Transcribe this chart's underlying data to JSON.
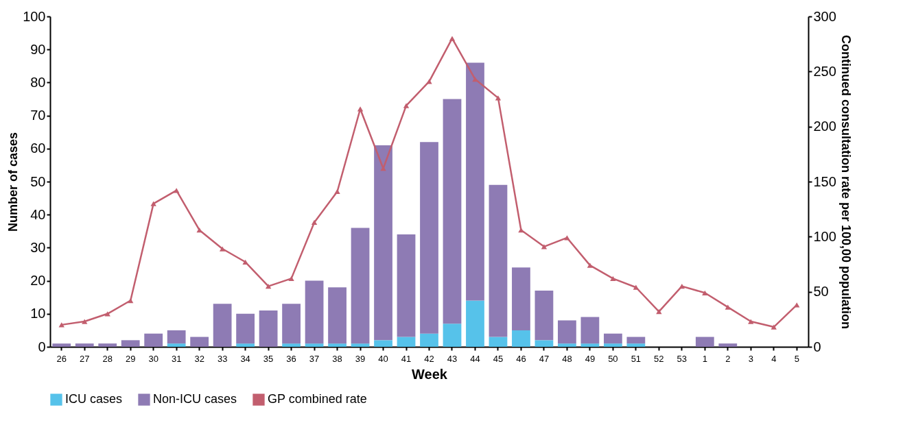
{
  "chart_data": {
    "type": "bar",
    "stacked": true,
    "xlabel": "Week",
    "ylabel": "Number of cases",
    "y2label": "Continued consultation rate per 100,00 population",
    "categories": [
      "26",
      "27",
      "28",
      "29",
      "30",
      "31",
      "32",
      "33",
      "34",
      "35",
      "36",
      "37",
      "38",
      "39",
      "40",
      "41",
      "42",
      "43",
      "44",
      "45",
      "46",
      "47",
      "48",
      "49",
      "50",
      "51",
      "52",
      "53",
      "1",
      "2",
      "3",
      "4",
      "5"
    ],
    "ylim": [
      0,
      100
    ],
    "yticks": [
      0,
      10,
      20,
      30,
      40,
      50,
      60,
      70,
      80,
      90,
      100
    ],
    "y2lim": [
      0,
      300
    ],
    "y2ticks": [
      0,
      50,
      100,
      150,
      200,
      250,
      300
    ],
    "legend": "bottom",
    "marker": "triangle",
    "series": [
      {
        "name": "ICU cases",
        "color": "#56c2ea",
        "values": [
          0,
          0,
          0,
          0,
          0,
          1,
          0,
          0,
          1,
          0,
          1,
          1,
          1,
          1,
          2,
          3,
          4,
          7,
          14,
          3,
          5,
          2,
          1,
          1,
          1,
          1,
          0,
          0,
          0,
          0,
          0,
          0,
          0
        ]
      },
      {
        "name": "Non-ICU cases",
        "color": "#8e7bb4",
        "values": [
          1,
          1,
          1,
          2,
          4,
          4,
          3,
          13,
          9,
          11,
          12,
          19,
          17,
          35,
          59,
          31,
          58,
          68,
          72,
          46,
          19,
          15,
          7,
          8,
          3,
          2,
          0,
          0,
          3,
          1,
          0,
          0,
          0
        ]
      },
      {
        "name": "GP combined rate",
        "type": "line",
        "axis": "y2",
        "color": "#c25e6e",
        "values": [
          20,
          23,
          30,
          42,
          130,
          142,
          106,
          89,
          77,
          55,
          62,
          113,
          141,
          216,
          162,
          219,
          241,
          280,
          243,
          226,
          106,
          91,
          99,
          74,
          62,
          54,
          32,
          55,
          49,
          36,
          23,
          18,
          38
        ]
      }
    ]
  }
}
